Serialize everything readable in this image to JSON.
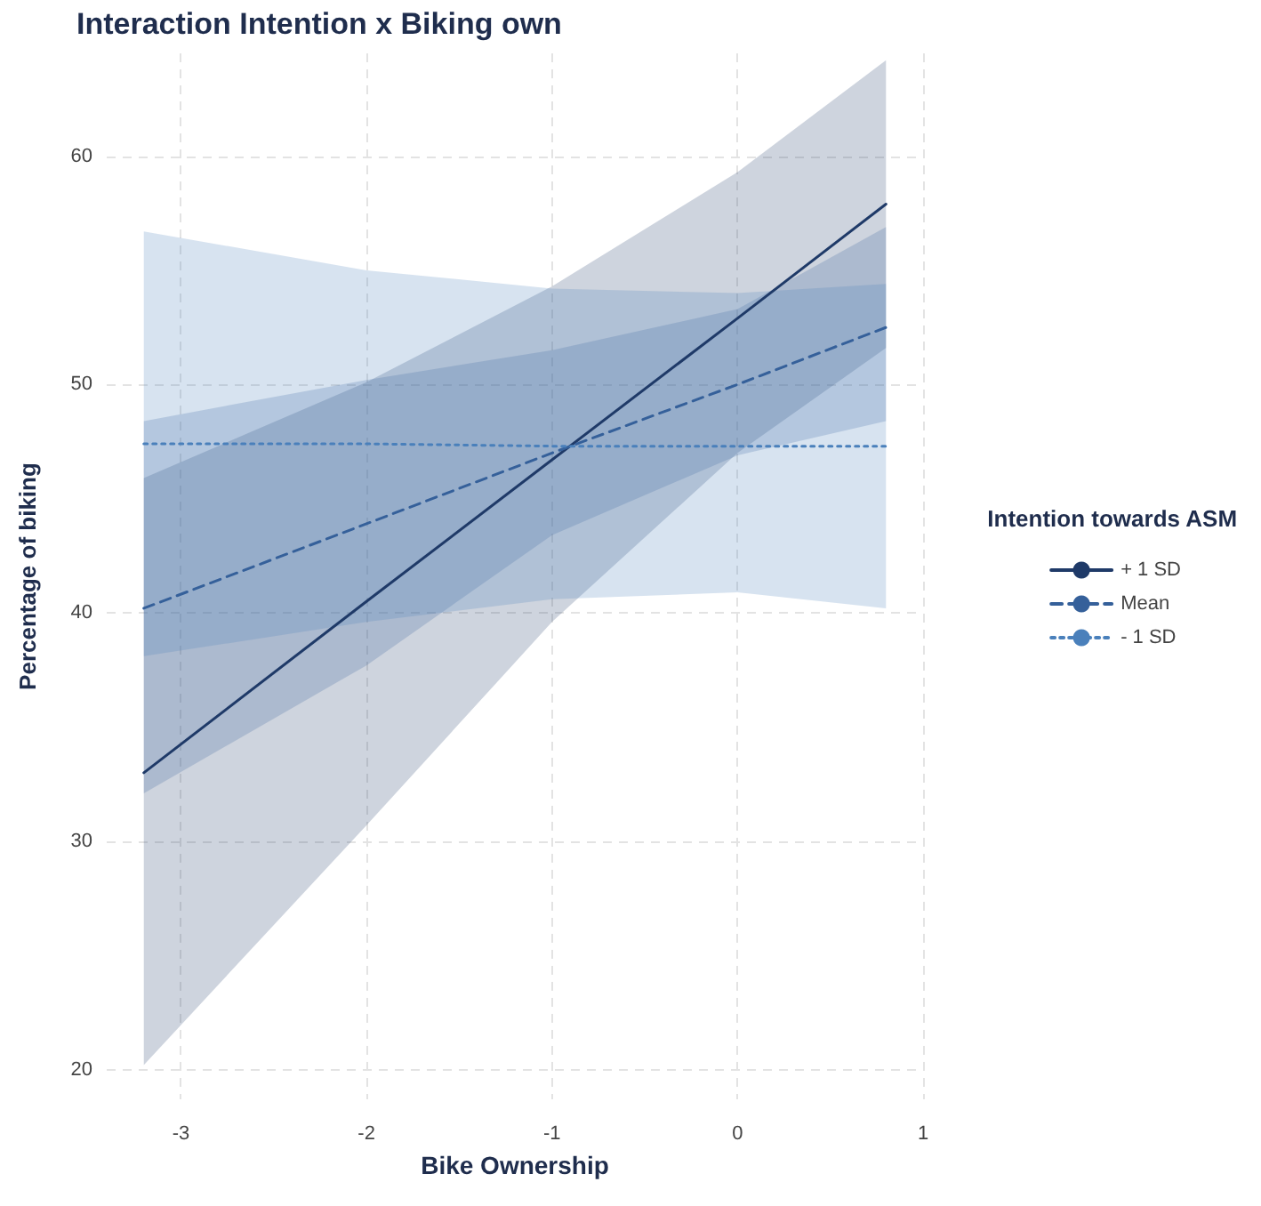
{
  "chart_data": {
    "type": "line",
    "title": "Interaction Intention x Biking own",
    "xlabel": "Bike Ownership",
    "ylabel": "Percentage of biking",
    "legend_title": "Intention towards ASM",
    "xlim": [
      -3.4,
      1.0
    ],
    "xticks": [
      -3,
      -2,
      -1,
      0,
      1
    ],
    "ylim": [
      18.7,
      64.5
    ],
    "yticks": [
      20,
      30,
      40,
      50,
      60
    ],
    "grid": true,
    "legend": "right",
    "marker": "none",
    "series": [
      {
        "name": "+ 1 SD",
        "color": "#1f3a68",
        "line_style": "solid",
        "x": [
          -3.2,
          -2,
          -1,
          0,
          0.8
        ],
        "values": [
          33,
          40.5,
          46.7,
          52.9,
          57.9
        ],
        "lower": [
          20.2,
          30.7,
          39.6,
          47.0,
          51.6
        ],
        "upper": [
          45.9,
          50.1,
          54.3,
          59.3,
          64.2
        ]
      },
      {
        "name": "Mean",
        "color": "#35609a",
        "line_style": "dashed",
        "x": [
          -3.2,
          -2,
          -1,
          0,
          0.8
        ],
        "values": [
          40.2,
          43.9,
          47.0,
          50.0,
          52.5
        ],
        "lower": [
          32.1,
          37.7,
          43.4,
          46.9,
          48.4
        ],
        "upper": [
          48.4,
          50.2,
          51.5,
          53.3,
          56.9
        ]
      },
      {
        "name": "- 1 SD",
        "color": "#4a80bb",
        "line_style": "dotted",
        "x": [
          -3.2,
          -2,
          -1,
          0,
          0.8
        ],
        "values": [
          47.4,
          47.4,
          47.3,
          47.3,
          47.3
        ],
        "lower": [
          38.1,
          39.6,
          40.6,
          40.9,
          40.2
        ],
        "upper": [
          56.7,
          55.0,
          54.2,
          54.0,
          54.4
        ]
      }
    ]
  }
}
